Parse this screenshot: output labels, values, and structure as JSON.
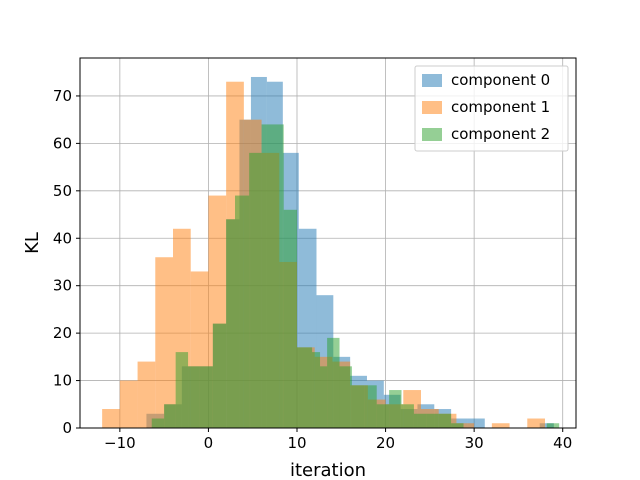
{
  "chart_data": {
    "type": "bar",
    "xlabel": "iteration",
    "ylabel": "KL",
    "xlim": [
      -14.5,
      41.5
    ],
    "ylim": [
      0,
      78
    ],
    "xticks": [
      -10,
      0,
      10,
      20,
      30,
      40
    ],
    "yticks": [
      0,
      10,
      20,
      30,
      40,
      50,
      60,
      70
    ],
    "xtick_labels": [
      "−10",
      "0",
      "10",
      "20",
      "30",
      "40"
    ],
    "ytick_labels": [
      "0",
      "10",
      "20",
      "30",
      "40",
      "50",
      "60",
      "70"
    ],
    "grid": true,
    "legend_position": "top-right",
    "series": [
      {
        "name": "component 0",
        "color": "#1f77b4",
        "bins": [
          {
            "x0": -7,
            "x1": -5,
            "value": 3
          },
          {
            "x0": -5,
            "x1": -3,
            "value": 5
          },
          {
            "x0": -3,
            "x1": -1,
            "value": 13
          },
          {
            "x0": -1,
            "x1": 0.5,
            "value": 13
          },
          {
            "x0": 0.5,
            "x1": 2,
            "value": 22
          },
          {
            "x0": 2,
            "x1": 3.5,
            "value": 44
          },
          {
            "x0": 3.5,
            "x1": 4.8,
            "value": 65
          },
          {
            "x0": 4.8,
            "x1": 6.6,
            "value": 74
          },
          {
            "x0": 6.6,
            "x1": 8.4,
            "value": 73
          },
          {
            "x0": 8.4,
            "x1": 10.2,
            "value": 58
          },
          {
            "x0": 10.2,
            "x1": 12.2,
            "value": 42
          },
          {
            "x0": 12.2,
            "x1": 14.1,
            "value": 28
          },
          {
            "x0": 14.1,
            "x1": 16,
            "value": 15
          },
          {
            "x0": 16,
            "x1": 17.9,
            "value": 11
          },
          {
            "x0": 17.9,
            "x1": 19.8,
            "value": 10
          },
          {
            "x0": 19.8,
            "x1": 21.7,
            "value": 7
          },
          {
            "x0": 21.7,
            "x1": 23.6,
            "value": 4
          },
          {
            "x0": 23.6,
            "x1": 25.5,
            "value": 5
          },
          {
            "x0": 25.5,
            "x1": 27.4,
            "value": 4
          },
          {
            "x0": 27.4,
            "x1": 29.3,
            "value": 2
          },
          {
            "x0": 29.3,
            "x1": 31.2,
            "value": 2
          },
          {
            "x0": 37.4,
            "x1": 39,
            "value": 1
          }
        ]
      },
      {
        "name": "component 1",
        "color": "#ff7f0e",
        "bins": [
          {
            "x0": -12,
            "x1": -10,
            "value": 4
          },
          {
            "x0": -10,
            "x1": -8,
            "value": 10
          },
          {
            "x0": -8,
            "x1": -6,
            "value": 14
          },
          {
            "x0": -6,
            "x1": -4,
            "value": 36
          },
          {
            "x0": -4,
            "x1": -2,
            "value": 42
          },
          {
            "x0": -2,
            "x1": 0,
            "value": 33
          },
          {
            "x0": 0,
            "x1": 2,
            "value": 49
          },
          {
            "x0": 2,
            "x1": 4,
            "value": 73
          },
          {
            "x0": 4,
            "x1": 6,
            "value": 65
          },
          {
            "x0": 6,
            "x1": 8,
            "value": 58
          },
          {
            "x0": 8,
            "x1": 10,
            "value": 35
          },
          {
            "x0": 10,
            "x1": 12,
            "value": 17
          },
          {
            "x0": 12,
            "x1": 14,
            "value": 15
          },
          {
            "x0": 14,
            "x1": 16,
            "value": 14
          },
          {
            "x0": 16,
            "x1": 18,
            "value": 9
          },
          {
            "x0": 18,
            "x1": 20,
            "value": 6
          },
          {
            "x0": 20,
            "x1": 22,
            "value": 5
          },
          {
            "x0": 22,
            "x1": 24,
            "value": 8
          },
          {
            "x0": 24,
            "x1": 26,
            "value": 4
          },
          {
            "x0": 26,
            "x1": 28,
            "value": 3
          },
          {
            "x0": 28,
            "x1": 30,
            "value": 1
          },
          {
            "x0": 32,
            "x1": 34,
            "value": 1
          },
          {
            "x0": 36,
            "x1": 38,
            "value": 2
          }
        ]
      },
      {
        "name": "component 2",
        "color": "#2ca02c",
        "bins": [
          {
            "x0": -6.4,
            "x1": -5,
            "value": 2
          },
          {
            "x0": -5,
            "x1": -3.7,
            "value": 5
          },
          {
            "x0": -3.7,
            "x1": -2.3,
            "value": 16
          },
          {
            "x0": -2.3,
            "x1": -1,
            "value": 13
          },
          {
            "x0": -1,
            "x1": 0.5,
            "value": 13
          },
          {
            "x0": 0.5,
            "x1": 2,
            "value": 22
          },
          {
            "x0": 2,
            "x1": 3,
            "value": 44
          },
          {
            "x0": 3,
            "x1": 4.6,
            "value": 49
          },
          {
            "x0": 4.6,
            "x1": 6,
            "value": 58
          },
          {
            "x0": 6,
            "x1": 8.5,
            "value": 64
          },
          {
            "x0": 8.5,
            "x1": 10,
            "value": 46
          },
          {
            "x0": 10,
            "x1": 11.7,
            "value": 17
          },
          {
            "x0": 11.7,
            "x1": 12.6,
            "value": 16
          },
          {
            "x0": 12.6,
            "x1": 13.4,
            "value": 13
          },
          {
            "x0": 13.4,
            "x1": 14.8,
            "value": 19
          },
          {
            "x0": 14.8,
            "x1": 16.2,
            "value": 13
          },
          {
            "x0": 16.2,
            "x1": 17.6,
            "value": 9
          },
          {
            "x0": 17.6,
            "x1": 19,
            "value": 9
          },
          {
            "x0": 19,
            "x1": 20.4,
            "value": 5
          },
          {
            "x0": 20.4,
            "x1": 21.8,
            "value": 8
          },
          {
            "x0": 21.8,
            "x1": 23.2,
            "value": 5
          },
          {
            "x0": 23.2,
            "x1": 24.6,
            "value": 3
          },
          {
            "x0": 24.6,
            "x1": 26,
            "value": 3
          },
          {
            "x0": 26,
            "x1": 27.4,
            "value": 3
          },
          {
            "x0": 27.4,
            "x1": 28.8,
            "value": 1
          },
          {
            "x0": 38.2,
            "x1": 39.6,
            "value": 1
          }
        ]
      }
    ]
  }
}
